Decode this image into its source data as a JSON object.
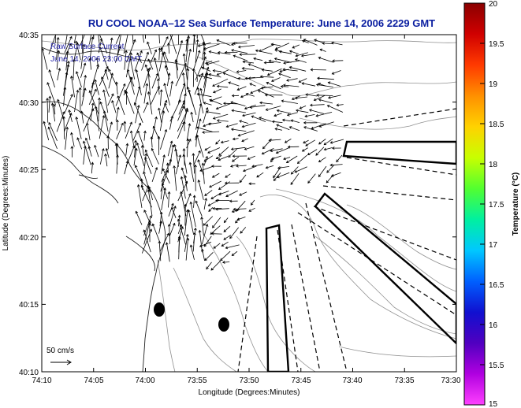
{
  "title": "RU COOL  NOAA–12  Sea Surface Temperature:  June 14, 2006 2229 GMT",
  "annotation": {
    "line1": "Raw Surface Current",
    "line2": "June 14, 2006 23:00 GMT"
  },
  "scale_label": "50 cm/s",
  "axes": {
    "xlabel": "Longitude (Degrees:Minutes)",
    "ylabel": "Latitude (Degrees:Minutes)",
    "xticks": [
      "74:10",
      "74:05",
      "74:00",
      "73:55",
      "73:50",
      "73:45",
      "73:40",
      "73:35",
      "73:30"
    ],
    "yticks": [
      "40:35",
      "40:30",
      "40:25",
      "40:20",
      "40:15",
      "40:10"
    ]
  },
  "colorbar": {
    "label": "Temperature (°C)",
    "ticks": [
      "20",
      "19.5",
      "19",
      "18.5",
      "18",
      "17.5",
      "17",
      "16.5",
      "16",
      "15.5",
      "15"
    ],
    "colors": [
      "#8a0000",
      "#d00000",
      "#ff3a00",
      "#ff9000",
      "#ffd200",
      "#c8ff00",
      "#52ff30",
      "#00f0a0",
      "#00c8ff",
      "#0060ff",
      "#1010d0",
      "#5000c0",
      "#b000e0",
      "#ff40ff"
    ]
  },
  "colors": {
    "title": "#0a1ea0",
    "annotation": "#2a2aa8",
    "contour": "#909090"
  }
}
